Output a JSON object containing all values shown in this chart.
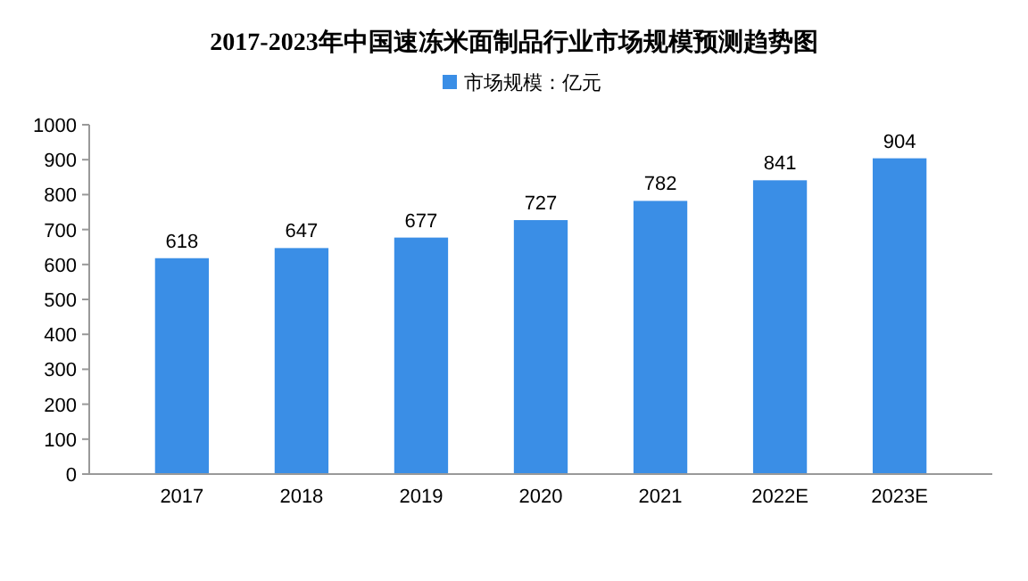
{
  "chart_data": {
    "type": "bar",
    "title": "2017-2023年中国速冻米面制品行业市场规模预测趋势图",
    "categories": [
      "2017",
      "2018",
      "2019",
      "2020",
      "2021",
      "2022E",
      "2023E"
    ],
    "series": [
      {
        "name": "市场规模：亿元",
        "color": "#3a8ee6",
        "values": [
          618,
          647,
          677,
          727,
          782,
          841,
          904
        ]
      }
    ],
    "ylim": [
      0,
      1000
    ],
    "yticks": [
      0,
      100,
      200,
      300,
      400,
      500,
      600,
      700,
      800,
      900,
      1000
    ],
    "data_labels": true,
    "legend": "top",
    "grid": false
  }
}
